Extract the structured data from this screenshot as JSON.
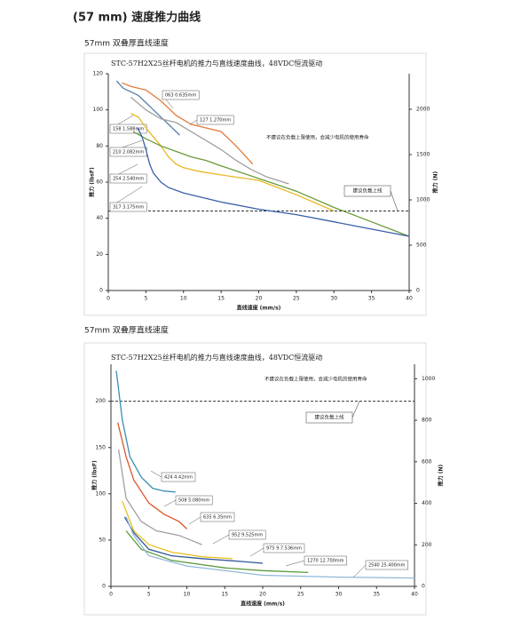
{
  "heading": "(57 mm) 速度推力曲线",
  "chart_data": [
    {
      "type": "line",
      "subtitle": "57mm 双叠厚直线速度",
      "title": "STC-57H2X25丝杆电机的推力与直线速度曲线，48VDC恒流驱动",
      "annotation": "不建议在负载上限使用，会减少电机的使用寿命",
      "limit_label": "建议负载上线",
      "limit_value": 44,
      "xlabel": "直线速度 (mm/s)",
      "ylabel": "推力 (lbsF)",
      "y2label": "推力 (N)",
      "xlim": [
        0,
        40
      ],
      "xticks": [
        0,
        5,
        10,
        15,
        20,
        25,
        30,
        35,
        40
      ],
      "ylim": [
        0,
        120
      ],
      "yticks": [
        0,
        20,
        40,
        60,
        80,
        100,
        120
      ],
      "y2lim": [
        0,
        2392
      ],
      "y2ticks": [
        0,
        500,
        1000,
        1500,
        2000
      ],
      "series": [
        {
          "name": "063 0.635mm",
          "color": "#5b7fa6",
          "x": [
            1.1,
            2,
            3,
            4,
            5,
            6,
            7,
            8,
            9,
            9.5
          ],
          "values": [
            116,
            112,
            110,
            108,
            104,
            100,
            96,
            92,
            88,
            86
          ]
        },
        {
          "name": "127 1.270mm",
          "color": "#e07a3a",
          "x": [
            1.8,
            3,
            5,
            7,
            9,
            11,
            13,
            15,
            17,
            19.2
          ],
          "values": [
            115,
            113,
            111,
            105,
            97,
            92,
            90,
            88,
            80,
            70
          ]
        },
        {
          "name": "158 1.588mm",
          "color": "#a0a0a0",
          "x": [
            3,
            5,
            7,
            9,
            11,
            13,
            15,
            17,
            19,
            21,
            24
          ],
          "values": [
            107,
            100,
            95,
            93,
            88,
            83,
            78,
            72,
            67,
            63,
            59
          ]
        },
        {
          "name": "210 2.082mm",
          "color": "#e8b820",
          "x": [
            3,
            4,
            5,
            6,
            7,
            8,
            9,
            10,
            12,
            15,
            20,
            25,
            30
          ],
          "values": [
            98,
            96,
            90,
            85,
            80,
            74,
            70,
            68,
            66,
            64,
            61,
            53,
            44
          ]
        },
        {
          "name": "254 2.540mm",
          "color": "#6a9a3a",
          "x": [
            3.3,
            5,
            7,
            9,
            11,
            13,
            15,
            20,
            25,
            30,
            35,
            40
          ],
          "values": [
            88,
            84,
            80,
            77,
            74,
            72,
            69,
            62,
            55,
            46,
            38,
            30
          ]
        },
        {
          "name": "317 3.175mm",
          "color": "#3a5fa8",
          "x": [
            3.9,
            4.5,
            5,
            5.5,
            6,
            7,
            8,
            10,
            15,
            20,
            25,
            30,
            35,
            40
          ],
          "values": [
            90,
            85,
            78,
            70,
            65,
            60,
            57,
            54,
            49,
            45,
            42,
            38,
            34,
            30
          ]
        }
      ]
    },
    {
      "type": "line",
      "subtitle": "57mm 双叠厚直线速度",
      "title": "STC-57H2X25丝杆电机的推力与直线速度曲线，48VDC恒流驱动",
      "annotation": "不建议在负载上限使用，会减少电机的使用寿命",
      "limit_label": "建议负载上线",
      "limit_value": 200,
      "xlabel": "直线速度 (mm/s)",
      "ylabel": "推力 (lbsF)",
      "y2label": "推力 (N)",
      "xlim": [
        0,
        40
      ],
      "xticks": [
        0,
        5,
        10,
        15,
        20,
        25,
        30,
        35,
        40
      ],
      "ylim": [
        0,
        240
      ],
      "yticks": [
        0,
        50,
        100,
        150,
        200
      ],
      "y2lim": [
        0,
        1070
      ],
      "y2ticks": [
        0,
        200,
        400,
        600,
        800,
        1000
      ],
      "series": [
        {
          "name": "424 4.42mm",
          "color": "#3a8fb0",
          "x": [
            0.7,
            1.5,
            2.5,
            4,
            5.5,
            7,
            8.5
          ],
          "values": [
            233,
            180,
            140,
            118,
            106,
            103,
            102
          ]
        },
        {
          "name": "508 5.080mm",
          "color": "#d9562a",
          "x": [
            0.9,
            2,
            3,
            5,
            7,
            9,
            10
          ],
          "values": [
            177,
            140,
            115,
            90,
            78,
            70,
            62
          ]
        },
        {
          "name": "635 6.35mm",
          "color": "#a0a0a0",
          "x": [
            1,
            2,
            4,
            6,
            9,
            12
          ],
          "values": [
            148,
            95,
            70,
            60,
            55,
            45
          ]
        },
        {
          "name": "952 9.525mm",
          "color": "#e8c020",
          "x": [
            1.5,
            3,
            5,
            8,
            12,
            16
          ],
          "values": [
            92,
            60,
            45,
            37,
            32,
            30
          ]
        },
        {
          "name": "975 9.7.536mm",
          "color": "#2f5597",
          "x": [
            1.8,
            3,
            5,
            8,
            12,
            17,
            20
          ],
          "values": [
            75,
            58,
            40,
            33,
            30,
            27,
            25
          ]
        },
        {
          "name": "1270 12.700mm",
          "color": "#5a9a3a",
          "x": [
            2,
            4,
            8,
            15,
            20,
            26
          ],
          "values": [
            60,
            40,
            28,
            20,
            17,
            15
          ]
        },
        {
          "name": "2540 25.400mm",
          "color": "#8fb8d8",
          "x": [
            2,
            3,
            5,
            10,
            20,
            30,
            40
          ],
          "values": [
            75,
            55,
            33,
            22,
            12,
            10,
            9
          ]
        }
      ]
    }
  ]
}
